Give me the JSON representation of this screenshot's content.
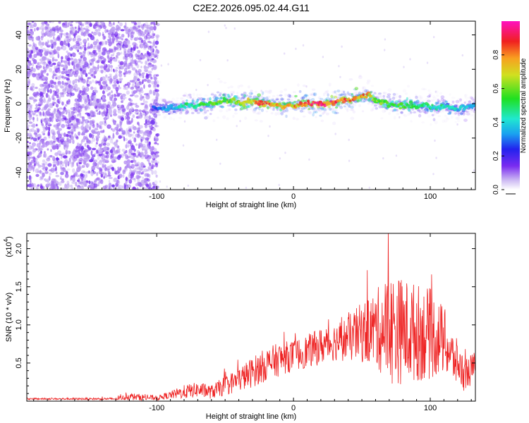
{
  "title": "C2E2.2026.095.02.44.G11",
  "chart_data": [
    {
      "type": "heatmap",
      "xlabel": "Height of straight line (km)",
      "ylabel": "Frequency (Hz)",
      "xlim": [
        -195,
        133
      ],
      "ylim": [
        -50,
        48
      ],
      "xticks": [
        -100,
        0,
        100
      ],
      "xtick_labels": [
        "-100",
        "0",
        "100"
      ],
      "yticks": [
        -40,
        -20,
        0,
        20,
        40
      ],
      "ytick_labels": [
        "-40",
        "-20",
        "0",
        "20",
        "40"
      ],
      "noise_region_x": [
        -195,
        -103
      ],
      "ridge": {
        "x": [
          -103,
          -90,
          -80,
          -70,
          -60,
          -50,
          -40,
          -30,
          -20,
          -10,
          0,
          10,
          20,
          30,
          40,
          45,
          50,
          55,
          60,
          70,
          80,
          90,
          100,
          110,
          120,
          133
        ],
        "freq": [
          -2,
          -3,
          -1,
          -1,
          0,
          2,
          1,
          1,
          0,
          -1,
          -1,
          0,
          0,
          1,
          2,
          3,
          4,
          5,
          2,
          0,
          -1,
          -1,
          -2,
          -2,
          -3,
          -1
        ],
        "amp": [
          0.25,
          0.35,
          0.45,
          0.5,
          0.55,
          0.6,
          0.65,
          0.75,
          0.82,
          0.7,
          0.75,
          0.85,
          0.9,
          0.85,
          0.8,
          0.78,
          0.8,
          0.75,
          0.6,
          0.55,
          0.55,
          0.5,
          0.45,
          0.45,
          0.4,
          0.35
        ]
      }
    },
    {
      "type": "line",
      "xlabel": "Height of straight line (km)",
      "ylabel": "SNR (10 * v/v)",
      "scale_label": "(x10",
      "scale_exponent": "4",
      "scale_close": ")",
      "xlim": [
        -195,
        133
      ],
      "ylim": [
        0,
        2.2
      ],
      "xticks": [
        -100,
        0,
        100
      ],
      "xtick_labels": [
        "-100",
        "0",
        "100"
      ],
      "yticks": [
        0.5,
        1.0,
        1.5,
        2.0
      ],
      "ytick_labels": [
        "0.5",
        "1.0",
        "1.5",
        "2.0"
      ],
      "series": [
        {
          "name": "SNR",
          "color": "#ee2222",
          "envelope_x": [
            -195,
            -130,
            -120,
            -100,
            -90,
            -80,
            -70,
            -60,
            -50,
            -40,
            -30,
            -20,
            -10,
            0,
            10,
            20,
            30,
            40,
            50,
            60,
            70,
            80,
            90,
            100,
            110,
            115,
            120,
            125,
            133
          ],
          "envelope_mean": [
            0.03,
            0.03,
            0.06,
            0.04,
            0.08,
            0.12,
            0.15,
            0.12,
            0.2,
            0.28,
            0.38,
            0.48,
            0.55,
            0.6,
            0.65,
            0.72,
            0.78,
            0.82,
            0.9,
            0.95,
            0.95,
            0.92,
            0.9,
            0.88,
            0.8,
            0.6,
            0.5,
            0.35,
            0.45
          ],
          "envelope_amp": [
            0.01,
            0.015,
            0.05,
            0.03,
            0.05,
            0.09,
            0.1,
            0.09,
            0.13,
            0.16,
            0.2,
            0.22,
            0.22,
            0.2,
            0.22,
            0.24,
            0.25,
            0.3,
            0.4,
            0.5,
            0.75,
            0.7,
            0.65,
            0.6,
            0.45,
            0.35,
            0.3,
            0.22,
            0.2
          ]
        }
      ]
    }
  ],
  "colorbar": {
    "label": "Normalized spectral amplitude",
    "range": [
      0,
      1
    ],
    "ticks": [
      0.0,
      0.2,
      0.4,
      0.6,
      0.8
    ],
    "tick_labels": [
      "0.0",
      "0.2",
      "0.4",
      "0.6",
      "0.8"
    ]
  },
  "colors": {
    "cmap": [
      "#ffffff",
      "#b09bf0",
      "#7a2cf0",
      "#2222ee",
      "#1aa0f0",
      "#20e8d0",
      "#20e020",
      "#d0e020",
      "#f8a020",
      "#f02020",
      "#ff10c0"
    ],
    "noise": "#7a2cf0",
    "line": "#ee2222",
    "axis": "#000000"
  }
}
